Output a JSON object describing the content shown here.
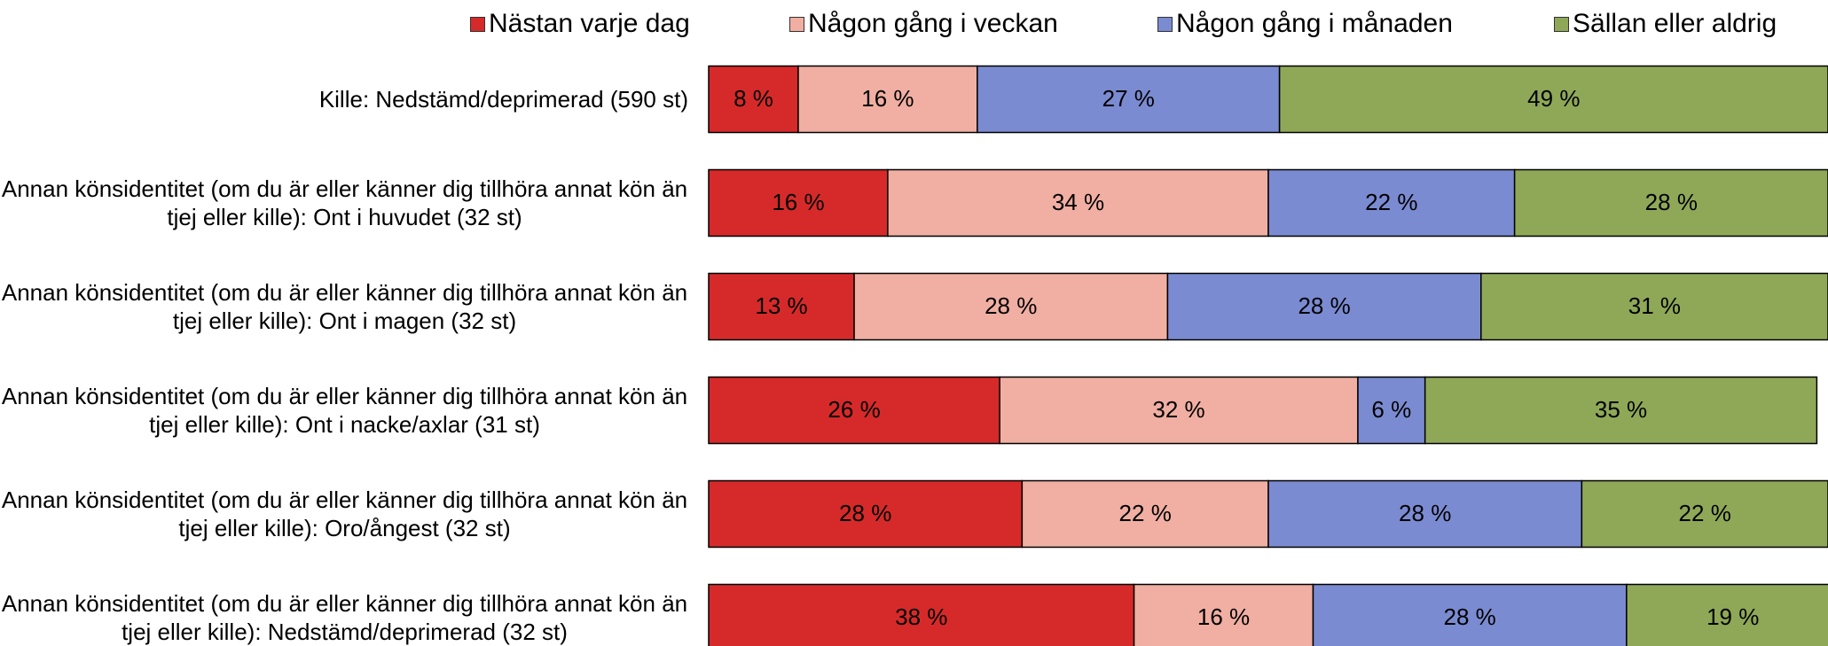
{
  "chart_data": {
    "type": "stacked_barh",
    "categories": [
      "Kille: Nedstämd/deprimerad (590 st)",
      "Annan könsidentitet (om du är eller känner dig tillhöra annat kön än tjej eller kille): Ont i huvudet (32 st)",
      "Annan könsidentitet (om du är eller känner dig tillhöra annat kön än tjej eller kille): Ont i magen (32 st)",
      "Annan könsidentitet (om du är eller känner dig tillhöra annat kön än tjej eller kille): Ont i nacke/axlar (31 st)",
      "Annan könsidentitet (om du är eller känner dig tillhöra annat kön än tjej eller kille): Oro/ångest (32 st)",
      "Annan könsidentitet (om du är eller känner dig tillhöra annat kön än tjej eller kille): Nedstämd/deprimerad (32 st)"
    ],
    "xlim": [
      0,
      100
    ],
    "series": [
      {
        "name": "Nästan varje dag",
        "color": "#d62a2a",
        "values": [
          8,
          16,
          13,
          26,
          28,
          38
        ],
        "value_labels": [
          "8 %",
          "16 %",
          "13 %",
          "26 %",
          "28 %",
          "38 %"
        ]
      },
      {
        "name": "Någon gång i veckan",
        "color": "#f0afa2",
        "values": [
          16,
          34,
          28,
          32,
          22,
          16
        ],
        "value_labels": [
          "16 %",
          "34 %",
          "28 %",
          "32 %",
          "22 %",
          "16 %"
        ]
      },
      {
        "name": "Någon gång i månaden",
        "color": "#7b8bd1",
        "values": [
          27,
          22,
          28,
          6,
          28,
          28
        ],
        "value_labels": [
          "27 %",
          "22 %",
          "28 %",
          "6 %",
          "28 %",
          "28 %"
        ]
      },
      {
        "name": "Sällan eller aldrig",
        "color": "#8fa858",
        "values": [
          49,
          28,
          31,
          35,
          22,
          19
        ],
        "value_labels": [
          "49 %",
          "28 %",
          "31 %",
          "35 %",
          "22 %",
          "19 %"
        ]
      }
    ]
  }
}
